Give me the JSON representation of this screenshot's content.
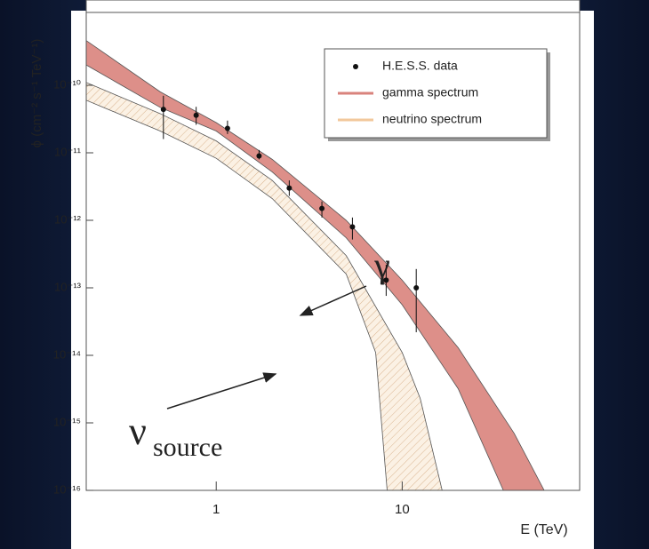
{
  "chart_data": {
    "type": "scatter",
    "x_label": "E (TeV)",
    "y_label": "ϕ (cm⁻² s⁻¹ TeV⁻¹)",
    "log_x": true,
    "log_y": true,
    "xlim": [
      0.2,
      90
    ],
    "ylim": [
      1e-16,
      1.2e-09
    ],
    "xticks": [
      1,
      10
    ],
    "yticks": [
      {
        "value": 1e-10,
        "label": "10⁻¹⁰"
      },
      {
        "value": 1e-11,
        "label": "10⁻¹¹"
      },
      {
        "value": 1e-12,
        "label": "10⁻¹²"
      },
      {
        "value": 1e-13,
        "label": "10⁻¹³"
      },
      {
        "value": 1e-14,
        "label": "10⁻¹⁴"
      },
      {
        "value": 1e-15,
        "label": "10⁻¹⁵"
      },
      {
        "value": 1e-16,
        "label": "10⁻¹⁶"
      }
    ],
    "legend": "upper right",
    "series": [
      {
        "name": "H.E.S.S. data",
        "color": "#111111",
        "x": [
          0.52,
          0.78,
          1.15,
          1.7,
          2.47,
          3.7,
          5.4,
          8.2,
          11.9
        ],
        "values": [
          4.4e-11,
          3.6e-11,
          2.3e-11,
          9e-12,
          3e-12,
          1.5e-12,
          8e-13,
          1.3e-13,
          1e-13
        ],
        "y_low": [
          1.6e-11,
          2.6e-11,
          1.9e-11,
          8e-12,
          2.3e-12,
          1.1e-12,
          5.2e-13,
          7.6e-14,
          2.2e-14
        ],
        "y_high": [
          7e-11,
          4.8e-11,
          3e-11,
          1.1e-11,
          3.9e-12,
          1.9e-12,
          1.1e-12,
          2.2e-13,
          1.9e-13
        ]
      }
    ],
    "bands": [
      {
        "name": "gamma spectrum",
        "color": "#d9837c",
        "x_upper": [
          0.2,
          0.5,
          1,
          2,
          5,
          10,
          20,
          40,
          58
        ],
        "upper": [
          4.6e-10,
          8e-11,
          2.8e-11,
          8e-12,
          1e-12,
          1.3e-13,
          1.3e-14,
          7e-16,
          1e-16
        ],
        "x_lower": [
          0.2,
          0.5,
          1,
          2,
          5,
          10,
          20,
          35
        ],
        "lower": [
          2e-10,
          4.7e-11,
          2.1e-11,
          5.2e-12,
          5.5e-13,
          5.6e-14,
          3.2e-15,
          1e-16
        ]
      },
      {
        "name": "neutrino spectrum",
        "color": "#f2c89c",
        "x_upper": [
          0.2,
          0.5,
          1,
          2,
          5,
          10,
          12.5,
          16.4
        ],
        "upper": [
          1.1e-10,
          3.8e-11,
          1.5e-11,
          3.9e-12,
          3e-13,
          1.1e-14,
          2.3e-15,
          1e-16
        ],
        "x_lower": [
          0.2,
          0.5,
          1,
          2,
          5,
          7.2,
          8.3
        ],
        "lower": [
          6e-11,
          2.1e-11,
          8.3e-12,
          2.1e-12,
          1.6e-13,
          1.1e-14,
          1e-16
        ]
      }
    ],
    "annotations": [
      "γ",
      "ν",
      "source"
    ]
  }
}
